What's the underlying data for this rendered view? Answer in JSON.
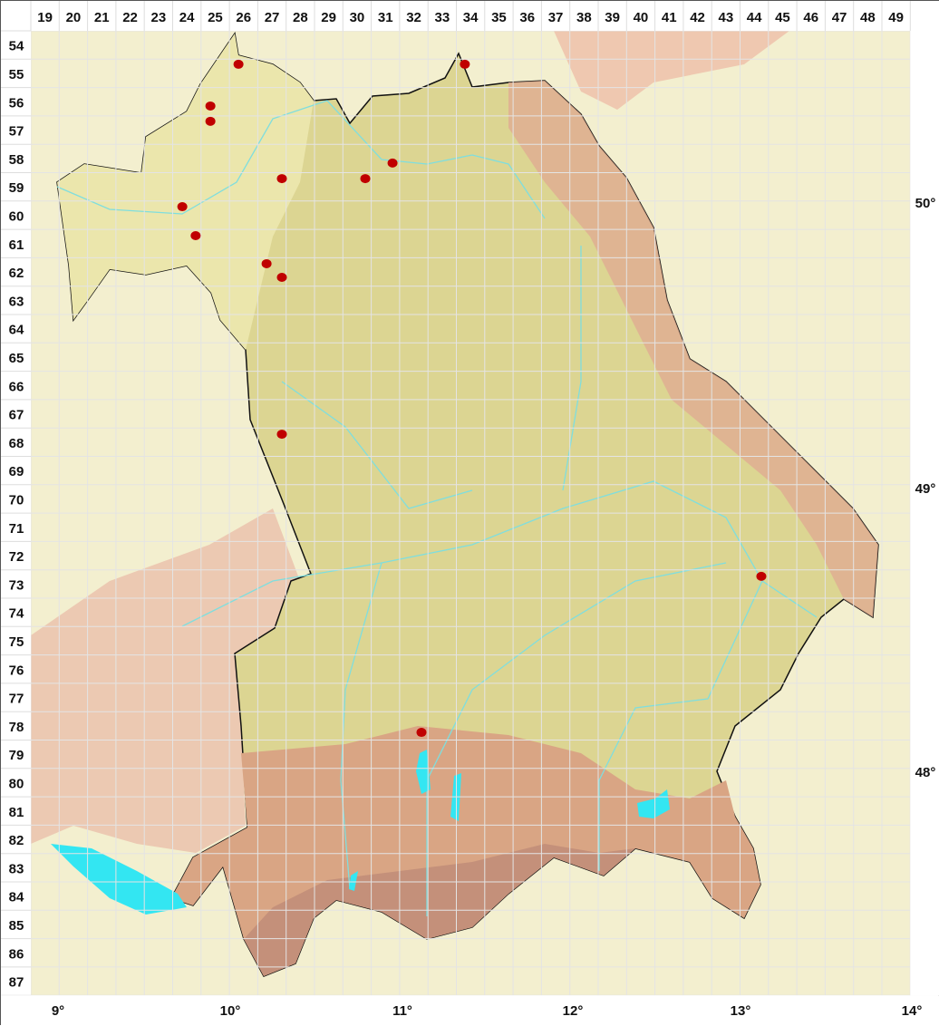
{
  "map": {
    "grid_columns": [
      "19",
      "20",
      "21",
      "22",
      "23",
      "24",
      "25",
      "26",
      "27",
      "28",
      "29",
      "30",
      "31",
      "32",
      "33",
      "34",
      "35",
      "36",
      "37",
      "38",
      "39",
      "40",
      "41",
      "42",
      "43",
      "44",
      "45",
      "46",
      "47",
      "48",
      "49"
    ],
    "grid_rows": [
      "54",
      "55",
      "56",
      "57",
      "58",
      "59",
      "60",
      "61",
      "62",
      "63",
      "64",
      "65",
      "66",
      "67",
      "68",
      "69",
      "70",
      "71",
      "72",
      "73",
      "74",
      "75",
      "76",
      "77",
      "78",
      "79",
      "80",
      "81",
      "82",
      "83",
      "84",
      "85",
      "86",
      "87"
    ],
    "longitude_labels": [
      "9°",
      "10°",
      "11°",
      "12°",
      "13°",
      "14°"
    ],
    "latitude_labels": [
      "50°",
      "49°",
      "48°"
    ],
    "colors": {
      "occurrence_dot": "#c00000",
      "lowland": "#dcd592",
      "upland": "#ece7b0",
      "mountain": "#d9a584",
      "water": "#33e6f2",
      "river": "#7fdede",
      "border": "#111111"
    },
    "occurrences": [
      {
        "col": 26.32,
        "row": 55.18
      },
      {
        "col": 34.3,
        "row": 55.18
      },
      {
        "col": 25.33,
        "row": 56.65
      },
      {
        "col": 25.33,
        "row": 57.19
      },
      {
        "col": 31.75,
        "row": 58.66
      },
      {
        "col": 27.85,
        "row": 59.21
      },
      {
        "col": 30.79,
        "row": 59.21
      },
      {
        "col": 24.34,
        "row": 60.2
      },
      {
        "col": 24.81,
        "row": 61.22
      },
      {
        "col": 27.31,
        "row": 62.21
      },
      {
        "col": 27.85,
        "row": 62.69
      },
      {
        "col": 27.85,
        "row": 68.22
      },
      {
        "col": 44.75,
        "row": 73.23
      },
      {
        "col": 32.77,
        "row": 78.73
      }
    ]
  }
}
